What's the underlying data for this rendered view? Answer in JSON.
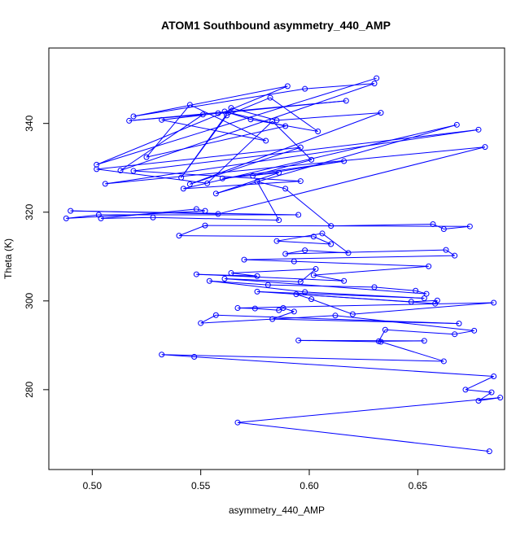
{
  "chart_data": {
    "type": "line",
    "title": "ATOM1 Southbound asymmetry_440_AMP",
    "xlabel": "asymmetry_440_AMP",
    "ylabel": "Theta (K)",
    "xlim": [
      0.48,
      0.69
    ],
    "ylim": [
      262,
      357
    ],
    "x_ticks": [
      0.5,
      0.55,
      0.6,
      0.65
    ],
    "x_tick_labels": [
      "0.50",
      "0.55",
      "0.60",
      "0.65"
    ],
    "y_ticks": [
      280,
      300,
      320,
      340
    ],
    "y_tick_labels": [
      "280",
      "300",
      "320",
      "340"
    ],
    "grid": false,
    "marker": "open-circle",
    "series": [
      {
        "color": "#0000ff",
        "points": [
          [
            0.631,
            350.2
          ],
          [
            0.502,
            330.7
          ],
          [
            0.59,
            348.4
          ],
          [
            0.519,
            341.6
          ],
          [
            0.598,
            347.8
          ],
          [
            0.63,
            349.0
          ],
          [
            0.513,
            329.4
          ],
          [
            0.551,
            342.0
          ],
          [
            0.517,
            340.6
          ],
          [
            0.617,
            345.1
          ],
          [
            0.558,
            342.3
          ],
          [
            0.532,
            340.8
          ],
          [
            0.58,
            336.1
          ],
          [
            0.545,
            344.2
          ],
          [
            0.525,
            332.4
          ],
          [
            0.589,
            339.4
          ],
          [
            0.561,
            342.7
          ],
          [
            0.573,
            340.9
          ],
          [
            0.604,
            338.2
          ],
          [
            0.582,
            345.8
          ],
          [
            0.562,
            341.8
          ],
          [
            0.541,
            327.8
          ],
          [
            0.564,
            343.5
          ],
          [
            0.585,
            340.7
          ],
          [
            0.633,
            342.4
          ],
          [
            0.545,
            326.3
          ],
          [
            0.596,
            334.6
          ],
          [
            0.502,
            329.7
          ],
          [
            0.553,
            326.5
          ],
          [
            0.583,
            340.5
          ],
          [
            0.601,
            331.8
          ],
          [
            0.574,
            328.2
          ],
          [
            0.616,
            331.5
          ],
          [
            0.56,
            327.6
          ],
          [
            0.586,
            328.9
          ],
          [
            0.557,
            324.2
          ],
          [
            0.668,
            339.7
          ],
          [
            0.542,
            325.3
          ],
          [
            0.596,
            327.0
          ],
          [
            0.519,
            329.3
          ],
          [
            0.678,
            338.6
          ],
          [
            0.506,
            326.4
          ],
          [
            0.681,
            334.7
          ],
          [
            0.558,
            319.6
          ],
          [
            0.49,
            320.3
          ],
          [
            0.595,
            319.4
          ],
          [
            0.503,
            319.4
          ],
          [
            0.488,
            318.6
          ],
          [
            0.552,
            320.3
          ],
          [
            0.548,
            320.7
          ],
          [
            0.504,
            318.6
          ],
          [
            0.528,
            318.8
          ],
          [
            0.586,
            318.2
          ],
          [
            0.576,
            326.9
          ],
          [
            0.589,
            325.3
          ],
          [
            0.61,
            316.9
          ],
          [
            0.657,
            317.3
          ],
          [
            0.662,
            316.2
          ],
          [
            0.674,
            316.8
          ],
          [
            0.552,
            317.0
          ],
          [
            0.54,
            314.7
          ],
          [
            0.602,
            314.5
          ],
          [
            0.61,
            312.8
          ],
          [
            0.585,
            313.5
          ],
          [
            0.606,
            315.2
          ],
          [
            0.618,
            310.8
          ],
          [
            0.598,
            311.4
          ],
          [
            0.589,
            310.6
          ],
          [
            0.663,
            311.5
          ],
          [
            0.667,
            310.2
          ],
          [
            0.57,
            309.3
          ],
          [
            0.593,
            308.9
          ],
          [
            0.655,
            307.8
          ],
          [
            0.602,
            305.8
          ],
          [
            0.616,
            304.5
          ],
          [
            0.548,
            306.0
          ],
          [
            0.576,
            305.6
          ],
          [
            0.564,
            306.3
          ],
          [
            0.603,
            307.2
          ],
          [
            0.596,
            304.3
          ],
          [
            0.561,
            305.0
          ],
          [
            0.654,
            301.6
          ],
          [
            0.649,
            302.3
          ],
          [
            0.63,
            303.1
          ],
          [
            0.581,
            303.6
          ],
          [
            0.554,
            304.5
          ],
          [
            0.598,
            302.0
          ],
          [
            0.653,
            300.6
          ],
          [
            0.576,
            302.1
          ],
          [
            0.658,
            299.4
          ],
          [
            0.659,
            300.1
          ],
          [
            0.647,
            299.8
          ],
          [
            0.594,
            301.5
          ],
          [
            0.601,
            300.4
          ],
          [
            0.62,
            297.0
          ],
          [
            0.685,
            299.6
          ],
          [
            0.567,
            298.4
          ],
          [
            0.575,
            298.3
          ],
          [
            0.586,
            297.9
          ],
          [
            0.588,
            298.4
          ],
          [
            0.593,
            297.6
          ],
          [
            0.583,
            295.9
          ],
          [
            0.669,
            294.9
          ],
          [
            0.557,
            296.8
          ],
          [
            0.55,
            295.0
          ],
          [
            0.612,
            296.7
          ],
          [
            0.676,
            293.3
          ],
          [
            0.667,
            292.5
          ],
          [
            0.635,
            293.5
          ],
          [
            0.632,
            290.9
          ],
          [
            0.653,
            291.0
          ],
          [
            0.595,
            291.1
          ],
          [
            0.633,
            290.8
          ],
          [
            0.662,
            286.4
          ],
          [
            0.532,
            287.9
          ],
          [
            0.547,
            287.4
          ],
          [
            0.685,
            283.0
          ],
          [
            0.672,
            280.0
          ],
          [
            0.684,
            279.4
          ],
          [
            0.678,
            277.5
          ],
          [
            0.688,
            278.2
          ],
          [
            0.567,
            272.6
          ],
          [
            0.683,
            266.1
          ]
        ]
      }
    ]
  }
}
